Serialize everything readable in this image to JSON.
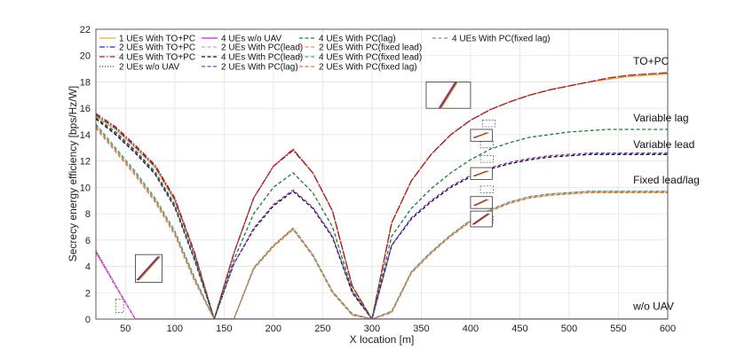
{
  "chart_data": {
    "type": "line",
    "xlabel": "X     location [m]",
    "ylabel": "Secrecy energy efficiency [bps/Hz/W]",
    "xlim": [
      20,
      600
    ],
    "ylim": [
      0,
      22
    ],
    "xticks": [
      50,
      100,
      150,
      200,
      250,
      300,
      350,
      400,
      450,
      500,
      550,
      600
    ],
    "yticks": [
      0,
      2,
      4,
      6,
      8,
      10,
      12,
      14,
      16,
      18,
      20,
      22
    ],
    "grid": true,
    "legend_position": "top-left, inside",
    "annotations": [
      {
        "text": "TO+PC",
        "x": 565,
        "y": 19.3
      },
      {
        "text": "Variable lag",
        "x": 565,
        "y": 15.0
      },
      {
        "text": "Variable lead",
        "x": 565,
        "y": 13.0
      },
      {
        "text": "Fixed lead/lag",
        "x": 565,
        "y": 10.3
      },
      {
        "text": "w/o UAV",
        "x": 565,
        "y": 0.7
      }
    ],
    "series": [
      {
        "name": "1 UEs With TO+PC",
        "color": "#e6b422",
        "dash": "solid",
        "x": [
          20,
          40,
          60,
          80,
          100,
          120,
          140,
          160,
          180,
          200,
          220,
          240,
          260,
          280,
          300,
          320,
          340,
          360,
          380,
          400,
          420,
          440,
          460,
          480,
          500,
          520,
          540,
          560,
          580,
          600
        ],
        "y": [
          15.4,
          14.4,
          13.0,
          11.5,
          9.0,
          5.0,
          0.0,
          5.0,
          9.2,
          11.6,
          12.9,
          11.1,
          8.2,
          2.5,
          0.0,
          7.3,
          10.5,
          12.5,
          14.0,
          15.1,
          15.9,
          16.5,
          17.0,
          17.4,
          17.7,
          18.0,
          18.2,
          18.4,
          18.5,
          18.6
        ]
      },
      {
        "name": "2 UEs With TO+PC",
        "color": "#2233cc",
        "dash": "dashdot",
        "x": [
          20,
          40,
          60,
          80,
          100,
          120,
          140,
          160,
          180,
          200,
          220,
          240,
          260,
          280,
          300,
          320,
          340,
          360,
          380,
          400,
          420,
          440,
          460,
          480,
          500,
          520,
          540,
          560,
          580,
          600
        ],
        "y": [
          15.5,
          14.5,
          13.1,
          11.6,
          9.1,
          5.0,
          0.0,
          5.0,
          9.2,
          11.6,
          12.8,
          11.1,
          8.2,
          2.5,
          0.0,
          7.3,
          10.5,
          12.5,
          14.0,
          15.1,
          15.9,
          16.5,
          17.0,
          17.4,
          17.7,
          18.0,
          18.3,
          18.5,
          18.6,
          18.7
        ]
      },
      {
        "name": "4 UEs With TO+PC",
        "color": "#dd1111",
        "dash": "dashdot",
        "x": [
          20,
          40,
          60,
          80,
          100,
          120,
          140,
          160,
          180,
          200,
          220,
          240,
          260,
          280,
          300,
          320,
          340,
          360,
          380,
          400,
          420,
          440,
          460,
          480,
          500,
          520,
          540,
          560,
          580,
          600
        ],
        "y": [
          15.6,
          14.6,
          13.2,
          11.7,
          9.2,
          5.1,
          0.0,
          5.0,
          9.2,
          11.6,
          12.9,
          11.1,
          8.2,
          2.5,
          0.0,
          7.3,
          10.5,
          12.5,
          14.0,
          15.1,
          15.9,
          16.5,
          17.0,
          17.4,
          17.7,
          18.0,
          18.3,
          18.5,
          18.6,
          18.7
        ]
      },
      {
        "name": "2 UEs w/o UAV",
        "color": "#444444",
        "dash": "dotted",
        "x": [
          20,
          40,
          60,
          80,
          100,
          600
        ],
        "y": [
          5.2,
          2.6,
          0.0,
          0.0,
          0.0,
          0.0
        ]
      },
      {
        "name": "4 UEs w/o UAV",
        "color": "#cc22cc",
        "dash": "solid",
        "x": [
          20,
          40,
          60,
          80,
          100,
          600
        ],
        "y": [
          5.1,
          2.5,
          0.0,
          0.0,
          0.0,
          0.0
        ]
      },
      {
        "name": "2 UEs With PC(lead)",
        "color": "#ee88ee",
        "dash": "dashed",
        "x": [
          20,
          40,
          60,
          80,
          100,
          600
        ],
        "y": [
          5.0,
          2.5,
          0.0,
          0.0,
          0.0,
          0.0
        ]
      },
      {
        "name": "4 UEs With PC(lead)",
        "color": "#111111",
        "dash": "dashed",
        "x": [
          20,
          40,
          60,
          80,
          100,
          120,
          140,
          160,
          180,
          200,
          220,
          240,
          260,
          280,
          300,
          320,
          340,
          360,
          380,
          400,
          420,
          440,
          460,
          480,
          500,
          520,
          540,
          560,
          580,
          600
        ],
        "y": [
          15.2,
          14.0,
          12.6,
          11.0,
          8.5,
          4.5,
          0.0,
          4.2,
          6.8,
          8.6,
          9.7,
          8.4,
          6.2,
          2.0,
          0.0,
          5.6,
          7.6,
          8.9,
          10.0,
          10.8,
          11.4,
          11.8,
          12.1,
          12.3,
          12.4,
          12.5,
          12.5,
          12.5,
          12.5,
          12.5
        ]
      },
      {
        "name": "2 UEs With PC(lag)",
        "color": "#8833dd",
        "dash": "dashed",
        "x": [
          20,
          40,
          60,
          80,
          100,
          120,
          140,
          160,
          180,
          200,
          220,
          240,
          260,
          280,
          300,
          320,
          340,
          360,
          380,
          400,
          420,
          440,
          460,
          480,
          500,
          520,
          540,
          560,
          580,
          600
        ],
        "y": [
          15.3,
          14.1,
          12.7,
          11.1,
          8.6,
          4.6,
          0.0,
          4.2,
          6.9,
          8.7,
          9.8,
          8.5,
          6.3,
          2.1,
          0.0,
          5.6,
          7.7,
          9.0,
          10.1,
          10.9,
          11.5,
          11.9,
          12.2,
          12.4,
          12.5,
          12.6,
          12.6,
          12.6,
          12.6,
          12.6
        ]
      },
      {
        "name": "4 UEs With PC(lag)",
        "color": "#1a7a3a",
        "dash": "dashed",
        "x": [
          20,
          40,
          60,
          80,
          100,
          120,
          140,
          160,
          180,
          200,
          220,
          240,
          260,
          280,
          300,
          320,
          340,
          360,
          380,
          400,
          420,
          440,
          460,
          480,
          500,
          520,
          540,
          560,
          580,
          600
        ],
        "y": [
          15.3,
          14.2,
          12.8,
          11.2,
          8.7,
          4.7,
          0.0,
          4.5,
          8.0,
          10.0,
          11.1,
          9.6,
          7.0,
          2.2,
          0.0,
          6.3,
          8.4,
          9.9,
          11.1,
          12.1,
          12.9,
          13.4,
          13.8,
          14.0,
          14.2,
          14.3,
          14.4,
          14.4,
          14.4,
          14.4
        ]
      },
      {
        "name": "2 UEs With PC(fixed lead)",
        "color": "#e89060",
        "dash": "dashed",
        "x": [
          20,
          40,
          60,
          80,
          100,
          120,
          140,
          160,
          180,
          200,
          220,
          240,
          260,
          280,
          300,
          320,
          340,
          360,
          380,
          400,
          420,
          440,
          460,
          480,
          500,
          520,
          540,
          560,
          580,
          600
        ],
        "y": [
          14.6,
          12.8,
          11.0,
          9.0,
          6.5,
          3.0,
          0.0,
          0.0,
          3.8,
          5.5,
          6.8,
          4.8,
          2.0,
          0.3,
          0.0,
          0.5,
          3.5,
          5.0,
          6.3,
          7.4,
          8.2,
          8.8,
          9.2,
          9.4,
          9.5,
          9.6,
          9.6,
          9.6,
          9.6,
          9.6
        ]
      },
      {
        "name": "4 UEs With PC(fixed lead)",
        "color": "#33aa88",
        "dash": "dashed",
        "x": [
          20,
          40,
          60,
          80,
          100,
          120,
          140,
          160,
          180,
          200,
          220,
          240,
          260,
          280,
          300,
          320,
          340,
          360,
          380,
          400,
          420,
          440,
          460,
          480,
          500,
          520,
          540,
          560,
          580,
          600
        ],
        "y": [
          14.8,
          13.0,
          11.2,
          9.2,
          6.7,
          3.2,
          0.0,
          0.0,
          3.9,
          5.6,
          6.9,
          4.9,
          2.1,
          0.4,
          0.0,
          0.6,
          3.6,
          5.1,
          6.4,
          7.5,
          8.3,
          8.9,
          9.3,
          9.5,
          9.6,
          9.7,
          9.7,
          9.7,
          9.7,
          9.7
        ]
      },
      {
        "name": "2 UEs With PC(fixed lag)",
        "color": "#f07030",
        "dash": "dashed",
        "x": [
          20,
          40,
          60,
          80,
          100,
          120,
          140,
          160,
          180,
          200,
          220,
          240,
          260,
          280,
          300,
          320,
          340,
          360,
          380,
          400,
          420,
          440,
          460,
          480,
          500,
          520,
          540,
          560,
          580,
          600
        ],
        "y": [
          14.5,
          12.7,
          10.9,
          8.9,
          6.4,
          2.9,
          0.0,
          0.0,
          3.8,
          5.5,
          6.8,
          4.8,
          2.0,
          0.3,
          0.0,
          0.5,
          3.5,
          5.0,
          6.3,
          7.4,
          8.2,
          8.8,
          9.2,
          9.4,
          9.5,
          9.6,
          9.6,
          9.6,
          9.6,
          9.6
        ]
      },
      {
        "name": "4 UEs With PC(fixed lag)",
        "color": "#779988",
        "dash": "dashed",
        "x": [
          20,
          40,
          60,
          80,
          100,
          120,
          140,
          160,
          180,
          200,
          220,
          240,
          260,
          280,
          300,
          320,
          340,
          360,
          380,
          400,
          420,
          440,
          460,
          480,
          500,
          520,
          540,
          560,
          580,
          600
        ],
        "y": [
          14.7,
          12.9,
          11.1,
          9.1,
          6.6,
          3.1,
          0.0,
          0.0,
          3.9,
          5.6,
          6.9,
          4.9,
          2.1,
          0.4,
          0.0,
          0.6,
          3.6,
          5.1,
          6.4,
          7.5,
          8.3,
          8.9,
          9.3,
          9.5,
          9.6,
          9.7,
          9.7,
          9.7,
          9.7,
          9.7
        ]
      }
    ]
  }
}
